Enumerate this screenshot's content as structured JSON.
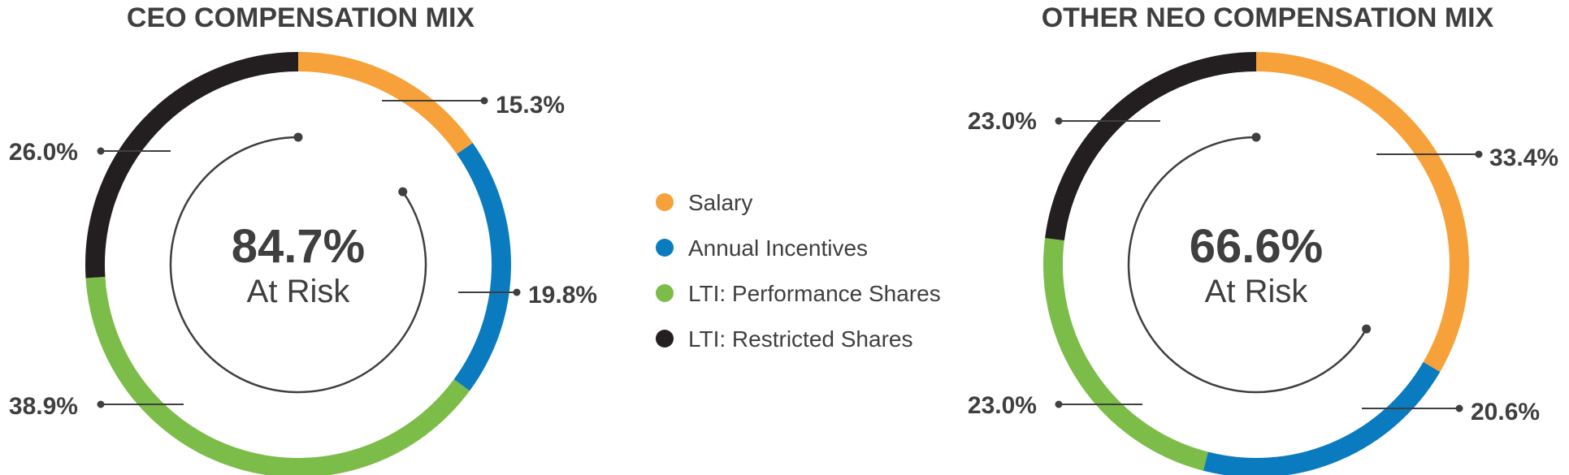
{
  "legend": [
    {
      "label": "Salary",
      "color": "#f7a13a"
    },
    {
      "label": "Annual Incentives",
      "color": "#0a7bbf"
    },
    {
      "label": "LTI: Performance Shares",
      "color": "#7cbc48"
    },
    {
      "label": "LTI: Restricted Shares",
      "color": "#231f20"
    }
  ],
  "chart_data": [
    {
      "type": "pie",
      "variant": "donut",
      "title": "CEO COMPENSATION MIX",
      "center": {
        "value": "84.7%",
        "label": "At Risk"
      },
      "slices": [
        {
          "name": "Salary",
          "value": 15.3,
          "label": "15.3%",
          "color": "#f7a13a"
        },
        {
          "name": "Annual Incentives",
          "value": 19.8,
          "label": "19.8%",
          "color": "#0a7bbf"
        },
        {
          "name": "LTI: Performance Shares",
          "value": 38.9,
          "label": "38.9%",
          "color": "#7cbc48"
        },
        {
          "name": "LTI: Restricted Shares",
          "value": 26.0,
          "label": "26.0%",
          "color": "#231f20"
        }
      ],
      "at_risk_arc_percent": 84.7
    },
    {
      "type": "pie",
      "variant": "donut",
      "title": "OTHER NEO COMPENSATION MIX",
      "center": {
        "value": "66.6%",
        "label": "At Risk"
      },
      "slices": [
        {
          "name": "Salary",
          "value": 33.4,
          "label": "33.4%",
          "color": "#f7a13a"
        },
        {
          "name": "Annual Incentives",
          "value": 20.6,
          "label": "20.6%",
          "color": "#0a7bbf"
        },
        {
          "name": "LTI: Performance Shares",
          "value": 23.0,
          "label": "23.0%",
          "color": "#7cbc48"
        },
        {
          "name": "LTI: Restricted Shares",
          "value": 23.0,
          "label": "23.0%",
          "color": "#231f20"
        }
      ],
      "at_risk_arc_percent": 66.6
    }
  ]
}
